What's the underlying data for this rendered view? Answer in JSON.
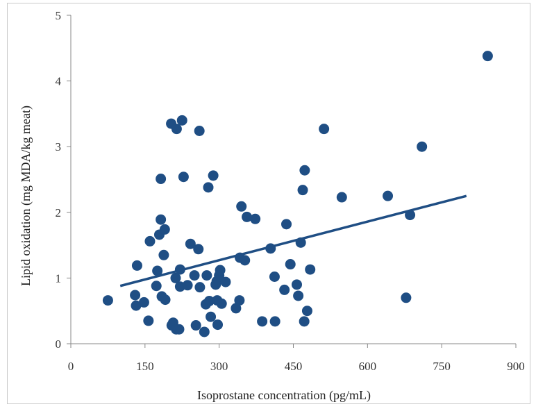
{
  "chart_data": {
    "type": "scatter",
    "title": "",
    "xlabel": "Isoprostane concentration (pg/mL)",
    "ylabel": "Lipid oxidation (mg MDA/kg meat)",
    "xlim": [
      0,
      900
    ],
    "ylim": [
      0,
      5
    ],
    "xticks": [
      0,
      150,
      300,
      450,
      600,
      750,
      900
    ],
    "yticks": [
      0,
      1,
      2,
      3,
      4,
      5
    ],
    "grid": false,
    "legend": "none",
    "marker_color": "#1f4e84",
    "trendline": {
      "x": [
        100,
        800
      ],
      "y": [
        0.88,
        2.25
      ]
    },
    "points": [
      [
        75,
        0.66
      ],
      [
        130,
        0.74
      ],
      [
        132,
        0.58
      ],
      [
        134,
        1.19
      ],
      [
        148,
        0.63
      ],
      [
        157,
        0.35
      ],
      [
        160,
        1.56
      ],
      [
        173,
        0.88
      ],
      [
        175,
        1.11
      ],
      [
        179,
        1.66
      ],
      [
        182,
        1.89
      ],
      [
        182,
        2.51
      ],
      [
        184,
        0.72
      ],
      [
        188,
        1.35
      ],
      [
        190,
        1.74
      ],
      [
        191,
        0.67
      ],
      [
        203,
        3.35
      ],
      [
        204,
        0.28
      ],
      [
        207,
        0.32
      ],
      [
        212,
        1.0
      ],
      [
        213,
        0.22
      ],
      [
        214,
        3.27
      ],
      [
        219,
        0.22
      ],
      [
        221,
        0.87
      ],
      [
        221,
        1.13
      ],
      [
        225,
        3.4
      ],
      [
        228,
        2.54
      ],
      [
        236,
        0.89
      ],
      [
        242,
        1.52
      ],
      [
        250,
        1.04
      ],
      [
        253,
        0.28
      ],
      [
        258,
        1.44
      ],
      [
        260,
        3.24
      ],
      [
        261,
        0.86
      ],
      [
        270,
        0.18
      ],
      [
        273,
        0.6
      ],
      [
        275,
        1.04
      ],
      [
        278,
        2.38
      ],
      [
        280,
        0.65
      ],
      [
        283,
        0.41
      ],
      [
        288,
        2.56
      ],
      [
        293,
        0.9
      ],
      [
        295,
        0.95
      ],
      [
        296,
        0.66
      ],
      [
        297,
        0.29
      ],
      [
        300,
        1.04
      ],
      [
        302,
        1.12
      ],
      [
        305,
        0.61
      ],
      [
        313,
        0.94
      ],
      [
        334,
        0.54
      ],
      [
        341,
        0.66
      ],
      [
        342,
        1.31
      ],
      [
        345,
        2.09
      ],
      [
        352,
        1.27
      ],
      [
        356,
        1.93
      ],
      [
        373,
        1.9
      ],
      [
        387,
        0.34
      ],
      [
        404,
        1.45
      ],
      [
        412,
        1.02
      ],
      [
        413,
        0.34
      ],
      [
        432,
        0.82
      ],
      [
        436,
        1.82
      ],
      [
        444,
        1.21
      ],
      [
        457,
        0.9
      ],
      [
        460,
        0.73
      ],
      [
        465,
        1.54
      ],
      [
        469,
        2.34
      ],
      [
        472,
        0.34
      ],
      [
        473,
        2.64
      ],
      [
        478,
        0.5
      ],
      [
        484,
        1.13
      ],
      [
        512,
        3.27
      ],
      [
        548,
        2.23
      ],
      [
        641,
        2.25
      ],
      [
        678,
        0.7
      ],
      [
        686,
        1.96
      ],
      [
        710,
        3.0
      ],
      [
        843,
        4.38
      ]
    ]
  }
}
